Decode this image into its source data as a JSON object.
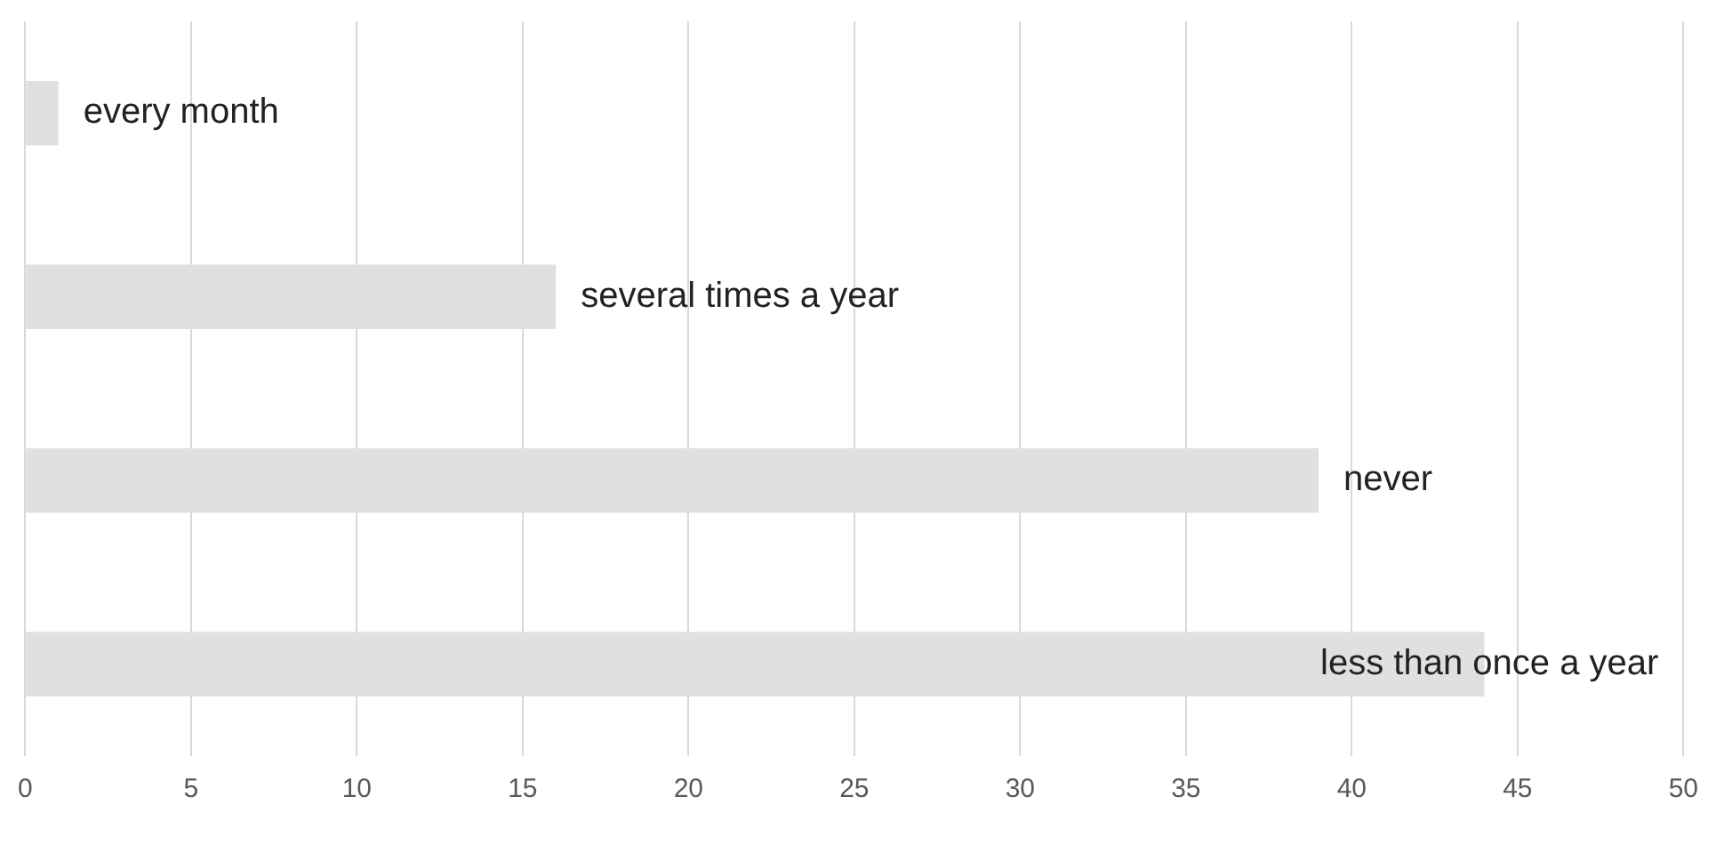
{
  "chart_data": {
    "type": "bar",
    "orientation": "horizontal",
    "categories": [
      "every month",
      "several times a year",
      "never",
      "less than once a year"
    ],
    "values": [
      1,
      16,
      39,
      44
    ],
    "color": "#e0e0e0",
    "xlim": [
      0,
      50
    ],
    "xticks": [
      0,
      5,
      10,
      15,
      20,
      25,
      30,
      35,
      40,
      45,
      50
    ],
    "grid": "x",
    "tick_labels": "x",
    "legend": false
  }
}
